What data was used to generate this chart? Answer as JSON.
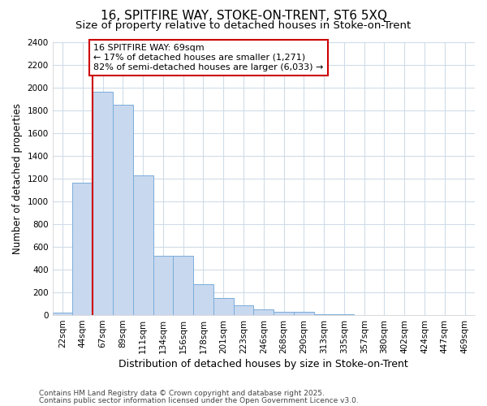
{
  "title1": "16, SPITFIRE WAY, STOKE-ON-TRENT, ST6 5XQ",
  "title2": "Size of property relative to detached houses in Stoke-on-Trent",
  "xlabel": "Distribution of detached houses by size in Stoke-on-Trent",
  "ylabel": "Number of detached properties",
  "categories": [
    "22sqm",
    "44sqm",
    "67sqm",
    "89sqm",
    "111sqm",
    "134sqm",
    "156sqm",
    "178sqm",
    "201sqm",
    "223sqm",
    "246sqm",
    "268sqm",
    "290sqm",
    "313sqm",
    "335sqm",
    "357sqm",
    "380sqm",
    "402sqm",
    "424sqm",
    "447sqm",
    "469sqm"
  ],
  "values": [
    20,
    1160,
    1960,
    1850,
    1230,
    520,
    520,
    270,
    150,
    85,
    50,
    30,
    30,
    10,
    5,
    3,
    2,
    2,
    2,
    2,
    2
  ],
  "bar_color": "#c8d8ee",
  "bar_edge_color": "#7aaddb",
  "red_line_index": 2,
  "annotation_line1": "16 SPITFIRE WAY: 69sqm",
  "annotation_line2": "← 17% of detached houses are smaller (1,271)",
  "annotation_line3": "82% of semi-detached houses are larger (6,033) →",
  "annotation_box_color": "#ffffff",
  "annotation_box_edge_color": "#cc0000",
  "ylim": [
    0,
    2400
  ],
  "yticks": [
    0,
    200,
    400,
    600,
    800,
    1000,
    1200,
    1400,
    1600,
    1800,
    2000,
    2200,
    2400
  ],
  "footer1": "Contains HM Land Registry data © Crown copyright and database right 2025.",
  "footer2": "Contains public sector information licensed under the Open Government Licence v3.0.",
  "bg_color": "#ffffff",
  "plot_bg_color": "#ffffff",
  "grid_color": "#d0dce8",
  "title_fontsize": 11,
  "subtitle_fontsize": 9.5,
  "axis_label_fontsize": 9,
  "tick_fontsize": 7.5,
  "ylabel_fontsize": 8.5,
  "annotation_fontsize": 8,
  "footer_fontsize": 6.5
}
